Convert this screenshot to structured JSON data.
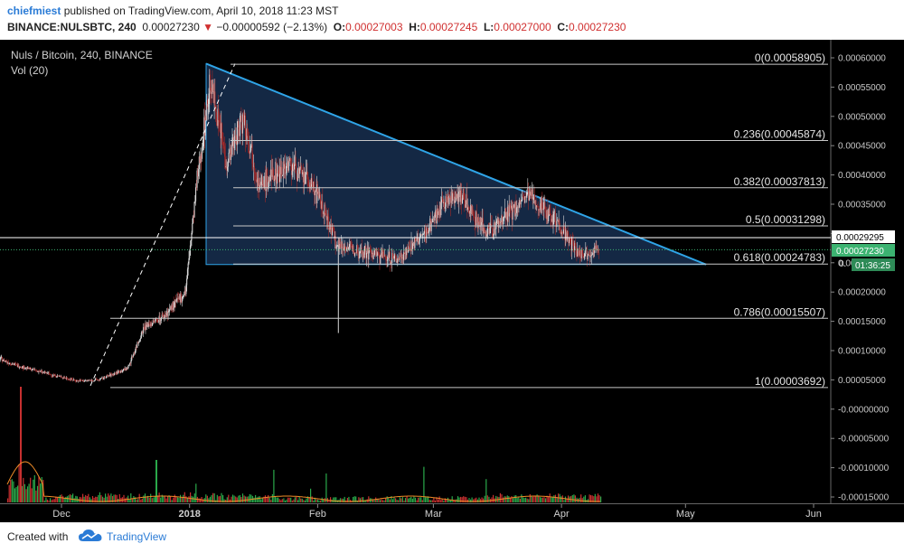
{
  "header": {
    "author": "chiefmiest",
    "published_text": " published on TradingView.com, April 10, 2018 11:23 MST",
    "symbol": "BINANCE:NULSBTC, 240",
    "last": "0.00027230",
    "change": "−0.00000592 (−2.13%)",
    "o_label": "O:",
    "o_value": "0.00027003",
    "h_label": "H:",
    "h_value": "0.00027245",
    "l_label": "L:",
    "l_value": "0.00027000",
    "c_label": "C:",
    "c_value": "0.00027230"
  },
  "legend": {
    "title": "Nuls / Bitcoin, 240, BINANCE",
    "volume": "Vol (20)"
  },
  "price_tags": {
    "line": "0.00029295",
    "last": "0.00027230",
    "countdown": "01:36:25",
    "partial": "0."
  },
  "footer": {
    "created": "Created with",
    "brand": "TradingView"
  },
  "colors": {
    "background": "#000000",
    "candle_up": "#d9d9d9",
    "candle_down": "#a02828",
    "fib_line": "#c8c8c8",
    "triangle_line": "#2fa4e7",
    "triangle_fill": "#162c4b",
    "last_tag": "#3cb371",
    "vol_ma": "#f08c28",
    "vol_up": "#2aa84a",
    "vol_down": "#c83030"
  },
  "chart_data": {
    "type": "candlestick",
    "x_ticks": [
      "Dec",
      "2018",
      "Feb",
      "Mar",
      "Apr",
      "May",
      "Jun"
    ],
    "y_ticks": [
      "0.00060000",
      "0.00055000",
      "0.00050000",
      "0.00045000",
      "0.00040000",
      "0.00035000",
      "0.00030000",
      "0.00025000",
      "0.00020000",
      "0.00015000",
      "0.00010000",
      "0.00005000",
      "-0.00000000",
      "-0.00005000",
      "-0.00010000",
      "-0.00015000"
    ],
    "fib_levels": [
      {
        "label": "0(0.00058905)",
        "value": 0.00058905
      },
      {
        "label": "0.236(0.00045874)",
        "value": 0.00045874
      },
      {
        "label": "0.382(0.00037813)",
        "value": 0.00037813
      },
      {
        "label": "0.5(0.00031298)",
        "value": 0.00031298
      },
      {
        "label": "0.618(0.00024783)",
        "value": 0.00024783
      },
      {
        "label": "0.786(0.00015507)",
        "value": 0.00015507
      },
      {
        "label": "1(0.00003692)",
        "value": 3.692e-05
      }
    ],
    "current_price": 0.0002723,
    "line_price": 0.00029295,
    "triangle": [
      {
        "date": "2018-01-05",
        "price": 0.00059
      },
      {
        "date": "2018-05-06",
        "price": 0.000247
      },
      {
        "date": "2018-01-05",
        "price": 0.000247
      }
    ],
    "dashed_trend": [
      {
        "date": "2017-12-08",
        "price": 4e-05
      },
      {
        "date": "2018-01-12",
        "price": 0.00059
      }
    ],
    "price_path": [
      {
        "date": "2017-11-13",
        "price": 9.5e-05
      },
      {
        "date": "2017-11-20",
        "price": 7.5e-05
      },
      {
        "date": "2017-11-28",
        "price": 6e-05
      },
      {
        "date": "2017-12-05",
        "price": 4.8e-05
      },
      {
        "date": "2017-12-10",
        "price": 5e-05
      },
      {
        "date": "2017-12-17",
        "price": 7e-05
      },
      {
        "date": "2017-12-21",
        "price": 0.00014
      },
      {
        "date": "2017-12-26",
        "price": 0.00016
      },
      {
        "date": "2017-12-31",
        "price": 0.0002
      },
      {
        "date": "2018-01-03",
        "price": 0.0004
      },
      {
        "date": "2018-01-06",
        "price": 0.00056
      },
      {
        "date": "2018-01-10",
        "price": 0.00042
      },
      {
        "date": "2018-01-14",
        "price": 0.0005
      },
      {
        "date": "2018-01-18",
        "price": 0.00038
      },
      {
        "date": "2018-01-25",
        "price": 0.00042
      },
      {
        "date": "2018-01-31",
        "price": 0.00038
      },
      {
        "date": "2018-02-06",
        "price": 0.00028
      },
      {
        "date": "2018-02-12",
        "price": 0.00027
      },
      {
        "date": "2018-02-20",
        "price": 0.000255
      },
      {
        "date": "2018-02-27",
        "price": 0.0003
      },
      {
        "date": "2018-03-03",
        "price": 0.00035
      },
      {
        "date": "2018-03-07",
        "price": 0.00037
      },
      {
        "date": "2018-03-14",
        "price": 0.0003
      },
      {
        "date": "2018-03-20",
        "price": 0.00034
      },
      {
        "date": "2018-03-24",
        "price": 0.000365
      },
      {
        "date": "2018-03-30",
        "price": 0.00033
      },
      {
        "date": "2018-04-05",
        "price": 0.000265
      },
      {
        "date": "2018-04-10",
        "price": 0.000272
      }
    ]
  }
}
